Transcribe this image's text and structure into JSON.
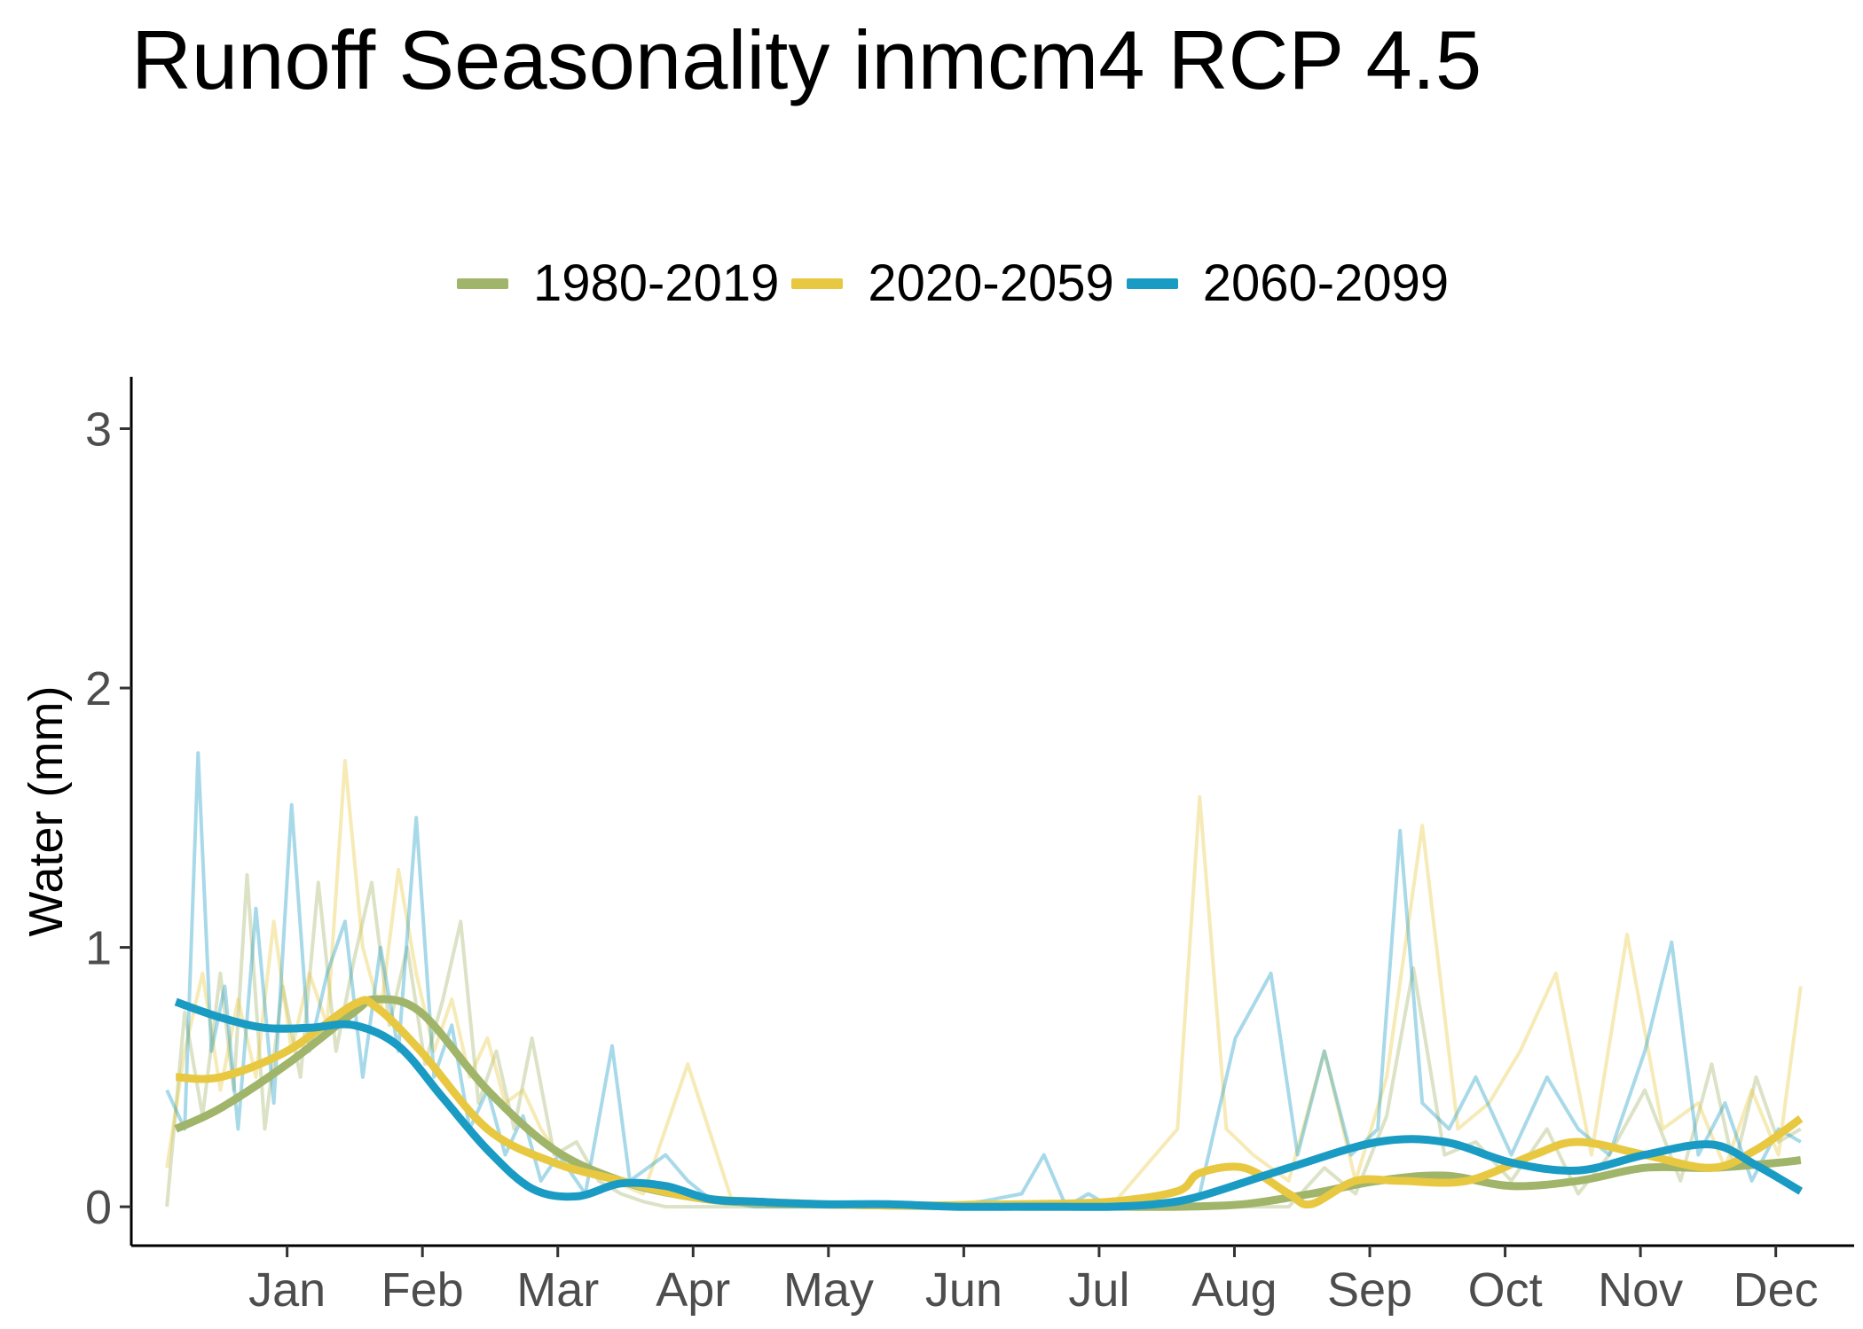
{
  "chart_data": {
    "type": "line",
    "title": "Runoff Seasonality inmcm4 RCP 4.5",
    "xlabel": "",
    "ylabel": "Water (mm)",
    "x_tick_labels": [
      "Jan",
      "Feb",
      "Mar",
      "Apr",
      "May",
      "Jun",
      "Jul",
      "Aug",
      "Sep",
      "Oct",
      "Nov",
      "Dec"
    ],
    "y_ticks": [
      0,
      1,
      2,
      3
    ],
    "ylim": [
      -0.15,
      3.2
    ],
    "x_unit": "day of year",
    "xlim": [
      -20,
      367
    ],
    "legend_position": "top",
    "grid": false,
    "series": [
      {
        "name": "1980-2019",
        "color": "#a0b46a",
        "smoothed": {
          "x": [
            -10,
            0,
            15,
            30,
            35,
            45,
            60,
            75,
            90,
            105,
            120,
            150,
            180,
            200,
            215,
            230,
            245,
            260,
            275,
            290,
            305,
            320,
            335,
            350,
            355
          ],
          "y": [
            0.3,
            0.38,
            0.55,
            0.75,
            0.8,
            0.75,
            0.45,
            0.22,
            0.1,
            0.04,
            0.015,
            0.005,
            0.0,
            0.0,
            0.0,
            0.01,
            0.05,
            0.1,
            0.12,
            0.08,
            0.1,
            0.15,
            0.15,
            0.17,
            0.18
          ]
        },
        "daily": {
          "x": [
            -12,
            -8,
            -4,
            0,
            3,
            6,
            10,
            14,
            18,
            22,
            26,
            30,
            34,
            38,
            42,
            46,
            50,
            54,
            58,
            62,
            66,
            70,
            75,
            80,
            85,
            90,
            95,
            100,
            110,
            120,
            135,
            150,
            165,
            180,
            195,
            210,
            220,
            230,
            240,
            248,
            255,
            262,
            268,
            275,
            282,
            290,
            298,
            305,
            312,
            320,
            328,
            335,
            340,
            345,
            350,
            355
          ],
          "y": [
            0.0,
            0.75,
            0.35,
            0.9,
            0.45,
            1.28,
            0.3,
            0.85,
            0.5,
            1.25,
            0.6,
            0.95,
            1.25,
            0.7,
            1.0,
            0.55,
            0.8,
            1.1,
            0.4,
            0.6,
            0.3,
            0.65,
            0.2,
            0.25,
            0.1,
            0.05,
            0.02,
            0.0,
            0.0,
            0.0,
            0.0,
            0.0,
            0.0,
            0.0,
            0.0,
            0.0,
            0.0,
            0.0,
            0.0,
            0.15,
            0.05,
            0.35,
            0.92,
            0.2,
            0.25,
            0.1,
            0.3,
            0.05,
            0.2,
            0.45,
            0.1,
            0.55,
            0.15,
            0.5,
            0.25,
            0.3
          ]
        }
      },
      {
        "name": "2020-2059",
        "color": "#e8c840",
        "smoothed": {
          "x": [
            -10,
            0,
            15,
            30,
            35,
            45,
            60,
            75,
            90,
            105,
            120,
            150,
            180,
            200,
            215,
            220,
            230,
            240,
            245,
            255,
            265,
            280,
            295,
            305,
            320,
            335,
            345,
            355
          ],
          "y": [
            0.5,
            0.5,
            0.6,
            0.78,
            0.77,
            0.6,
            0.3,
            0.17,
            0.1,
            0.04,
            0.02,
            0.005,
            0.01,
            0.02,
            0.06,
            0.13,
            0.15,
            0.05,
            0.01,
            0.1,
            0.1,
            0.1,
            0.2,
            0.25,
            0.2,
            0.15,
            0.22,
            0.34
          ]
        },
        "daily": {
          "x": [
            -12,
            -8,
            -4,
            0,
            4,
            8,
            12,
            16,
            20,
            24,
            28,
            32,
            36,
            40,
            44,
            48,
            52,
            56,
            60,
            64,
            68,
            72,
            76,
            82,
            88,
            95,
            105,
            115,
            125,
            140,
            155,
            170,
            185,
            200,
            215,
            220,
            226,
            232,
            240,
            248,
            255,
            262,
            270,
            278,
            285,
            292,
            300,
            308,
            316,
            324,
            332,
            338,
            344,
            350,
            355
          ],
          "y": [
            0.15,
            0.6,
            0.9,
            0.45,
            0.8,
            0.5,
            1.1,
            0.6,
            0.9,
            0.7,
            1.72,
            1.0,
            0.75,
            1.3,
            0.9,
            0.6,
            0.8,
            0.5,
            0.65,
            0.4,
            0.45,
            0.3,
            0.2,
            0.15,
            0.1,
            0.05,
            0.55,
            0.02,
            0.0,
            0.0,
            0.0,
            0.02,
            0.0,
            0.0,
            0.3,
            1.58,
            0.3,
            0.2,
            0.1,
            0.6,
            0.1,
            0.5,
            1.47,
            0.3,
            0.4,
            0.6,
            0.9,
            0.2,
            1.05,
            0.3,
            0.4,
            0.15,
            0.45,
            0.2,
            0.85
          ]
        }
      },
      {
        "name": "2060-2099",
        "color": "#1a9bc4",
        "smoothed": {
          "x": [
            -10,
            0,
            10,
            20,
            30,
            40,
            50,
            60,
            70,
            80,
            90,
            100,
            110,
            120,
            135,
            150,
            165,
            180,
            190,
            200,
            210,
            220,
            240,
            260,
            275,
            290,
            305,
            320,
            335,
            345,
            355
          ],
          "y": [
            0.79,
            0.73,
            0.69,
            0.69,
            0.7,
            0.62,
            0.42,
            0.22,
            0.07,
            0.04,
            0.09,
            0.08,
            0.03,
            0.02,
            0.01,
            0.01,
            0.0,
            0.0,
            0.0,
            0.0,
            0.01,
            0.04,
            0.15,
            0.25,
            0.25,
            0.17,
            0.14,
            0.2,
            0.24,
            0.16,
            0.06
          ]
        },
        "daily": {
          "x": [
            -12,
            -8,
            -5,
            -2,
            1,
            4,
            8,
            12,
            16,
            20,
            24,
            28,
            32,
            36,
            40,
            44,
            48,
            52,
            56,
            60,
            64,
            68,
            72,
            76,
            82,
            88,
            92,
            100,
            105,
            110,
            120,
            135,
            150,
            165,
            180,
            185,
            190,
            195,
            200,
            210,
            220,
            228,
            236,
            242,
            248,
            254,
            260,
            265,
            270,
            276,
            282,
            290,
            298,
            305,
            312,
            320,
            326,
            332,
            338,
            344,
            350,
            355
          ],
          "y": [
            0.45,
            0.3,
            1.75,
            0.6,
            0.85,
            0.3,
            1.15,
            0.4,
            1.55,
            0.6,
            0.9,
            1.1,
            0.5,
            1.0,
            0.6,
            1.5,
            0.5,
            0.7,
            0.3,
            0.45,
            0.2,
            0.35,
            0.1,
            0.2,
            0.05,
            0.62,
            0.1,
            0.2,
            0.1,
            0.03,
            0.0,
            0.0,
            0.0,
            0.0,
            0.05,
            0.2,
            0.0,
            0.05,
            0.0,
            0.0,
            0.05,
            0.65,
            0.9,
            0.2,
            0.6,
            0.2,
            0.3,
            1.45,
            0.4,
            0.3,
            0.5,
            0.2,
            0.5,
            0.3,
            0.2,
            0.6,
            1.02,
            0.2,
            0.4,
            0.1,
            0.3,
            0.25
          ]
        }
      }
    ]
  }
}
